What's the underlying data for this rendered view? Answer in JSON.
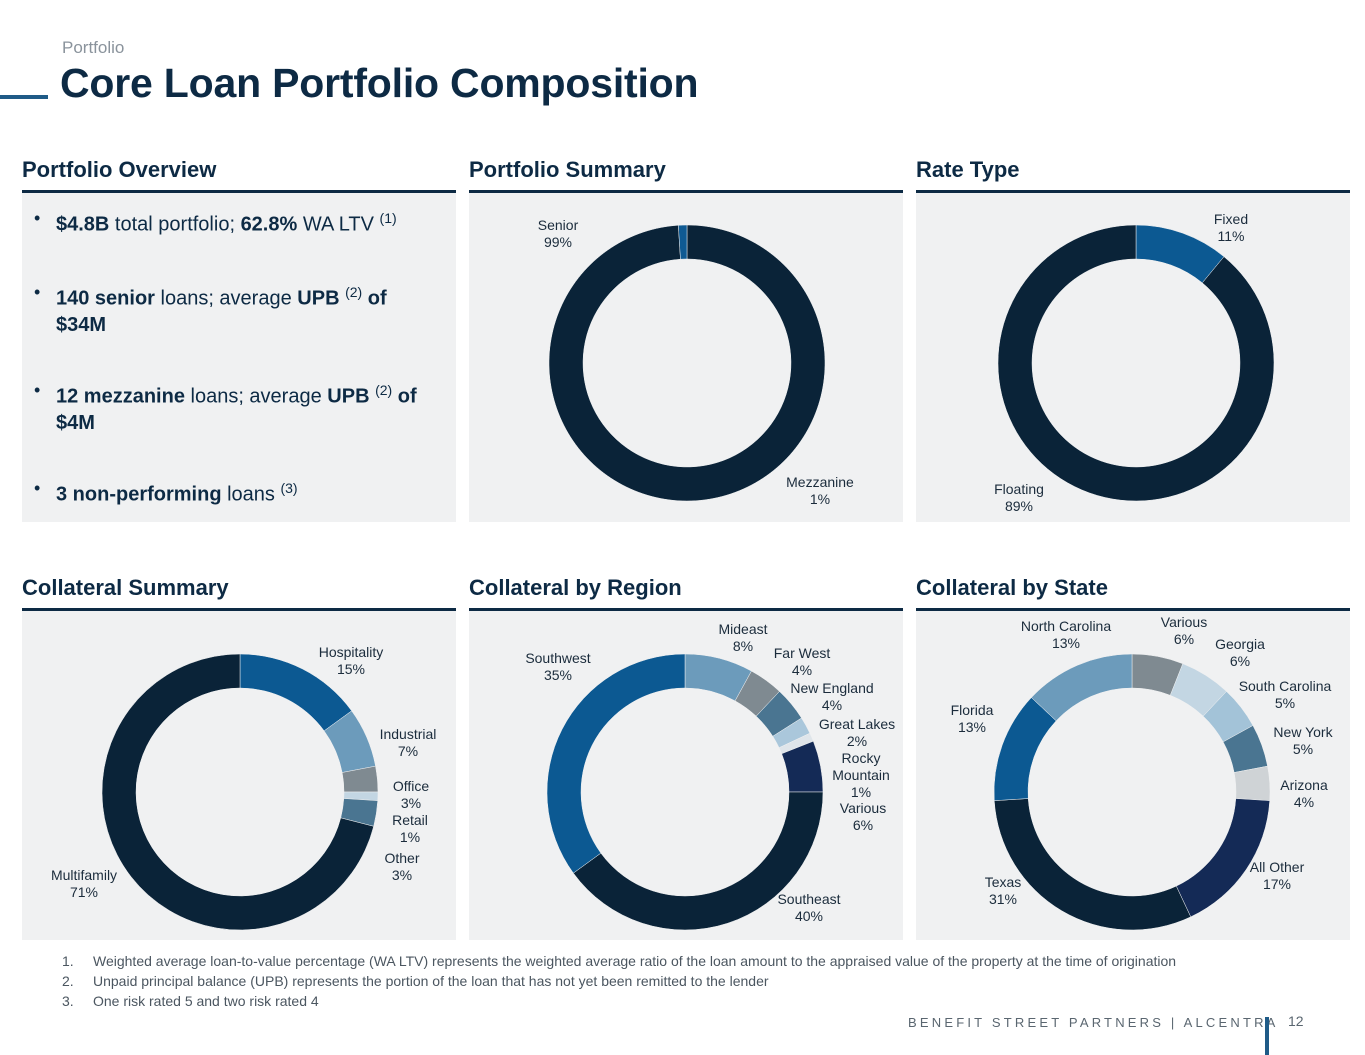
{
  "header": {
    "eyebrow": "Portfolio",
    "title": "Core Loan Portfolio Composition"
  },
  "panels": {
    "overview": "Portfolio Overview",
    "summary": "Portfolio Summary",
    "rate": "Rate Type",
    "collateral": "Collateral Summary",
    "region": "Collateral by Region",
    "state": "Collateral by State"
  },
  "overview_bullets": [
    {
      "b1": "$4.8B",
      "t1": " total portfolio; ",
      "b2": "62.8%",
      "t2": " WA LTV ",
      "sup": "(1)"
    },
    {
      "b1": "140 senior",
      "t1": " loans; average ",
      "b2": "UPB",
      "sup": "(2)",
      "t2": " of $34M"
    },
    {
      "b1": "12 mezzanine",
      "t1": " loans; average ",
      "b2": "UPB",
      "sup": "(2)",
      "t2": " of $4M"
    },
    {
      "b1": "3 non-performing",
      "t1": " loans ",
      "sup": "(3)"
    }
  ],
  "chart_data": [
    {
      "type": "pie",
      "title": "Portfolio Summary",
      "labels": [
        "Senior",
        "Mezzanine"
      ],
      "values": [
        99,
        1
      ],
      "display": [
        "99%",
        "1%"
      ],
      "colors": [
        "#0a2338",
        "#0f5a93"
      ]
    },
    {
      "type": "pie",
      "title": "Rate Type",
      "labels": [
        "Fixed",
        "Floating"
      ],
      "values": [
        11,
        89
      ],
      "display": [
        "11%",
        "89%"
      ],
      "colors": [
        "#0c5992",
        "#0a2338"
      ]
    },
    {
      "type": "pie",
      "title": "Collateral Summary",
      "labels": [
        "Hospitality",
        "Industrial",
        "Office",
        "Retail",
        "Other",
        "Multifamily"
      ],
      "values": [
        15,
        7,
        3,
        1,
        3,
        71
      ],
      "display": [
        "15%",
        "7%",
        "3%",
        "1%",
        "3%",
        "71%"
      ],
      "colors": [
        "#0c5992",
        "#6c9bbb",
        "#7f8a91",
        "#c3d6e3",
        "#4a7591",
        "#0a2338"
      ]
    },
    {
      "type": "pie",
      "title": "Collateral by Region",
      "labels": [
        "Mideast",
        "Far West",
        "New England",
        "Great Lakes",
        "Rocky Mountain",
        "Various",
        "Southeast",
        "Southwest"
      ],
      "values": [
        8,
        4,
        4,
        2,
        1,
        6,
        40,
        35
      ],
      "display": [
        "8%",
        "4%",
        "4%",
        "2%",
        "1%",
        "6%",
        "40%",
        "35%"
      ],
      "colors": [
        "#6c9bbb",
        "#7f8a91",
        "#4a7591",
        "#aac7db",
        "#dfe5ea",
        "#142a56",
        "#0a2338",
        "#0c5992"
      ]
    },
    {
      "type": "pie",
      "title": "Collateral by State",
      "labels": [
        "Various",
        "Georgia",
        "South Carolina",
        "New York",
        "Arizona",
        "All Other",
        "Texas",
        "Florida",
        "North Carolina"
      ],
      "values": [
        6,
        6,
        5,
        5,
        4,
        17,
        31,
        13,
        13
      ],
      "display": [
        "6%",
        "6%",
        "5%",
        "5%",
        "4%",
        "17%",
        "31%",
        "13%",
        "13%"
      ],
      "colors": [
        "#7f8a91",
        "#c3d6e3",
        "#a3c3d8",
        "#4a7591",
        "#cfd3d6",
        "#142a56",
        "#0a2338",
        "#0c5992",
        "#6c9bbb"
      ]
    }
  ],
  "footnotes": [
    {
      "num": "1.",
      "text": "Weighted average loan-to-value percentage (WA LTV) represents the weighted average ratio of the loan amount to the appraised value of the property at the time of origination"
    },
    {
      "num": "2.",
      "text": "Unpaid principal balance (UPB) represents the portion of the loan that has not yet been remitted to the lender"
    },
    {
      "num": "3.",
      "text": "One risk rated 5 and two risk rated 4"
    }
  ],
  "footer": {
    "brand": "BENEFIT STREET PARTNERS | ALCENTRA",
    "page": "12"
  }
}
